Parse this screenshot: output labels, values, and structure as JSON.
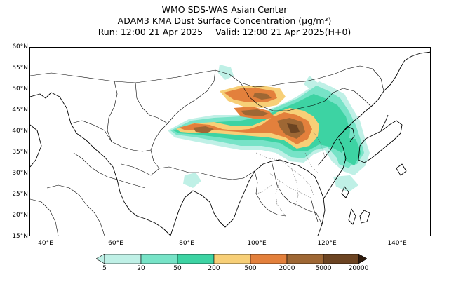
{
  "header": {
    "center_name": "WMO SDS-WAS Asian Center",
    "product": "ADAM3 KMA Dust Surface Concentration (μg/m³)",
    "run_label": "Run: 12:00 21 Apr 2025",
    "valid_label": "Valid: 12:00 21 Apr 2025(H+0)"
  },
  "map": {
    "lat_ticks": [
      "60°N",
      "55°N",
      "50°N",
      "45°N",
      "40°N",
      "35°N",
      "30°N",
      "25°N",
      "20°N",
      "15°N"
    ],
    "lon_ticks": [
      "40°E",
      "60°E",
      "80°E",
      "100°E",
      "120°E",
      "140°E"
    ]
  },
  "legend": {
    "levels": [
      "5",
      "20",
      "50",
      "200",
      "500",
      "2000",
      "5000",
      "20000"
    ],
    "colors": [
      "#bff0e6",
      "#77e3c7",
      "#3dd3a3",
      "#f7cf77",
      "#e3803c",
      "#9e6734",
      "#6c4422",
      "#2e1a0c"
    ]
  }
}
